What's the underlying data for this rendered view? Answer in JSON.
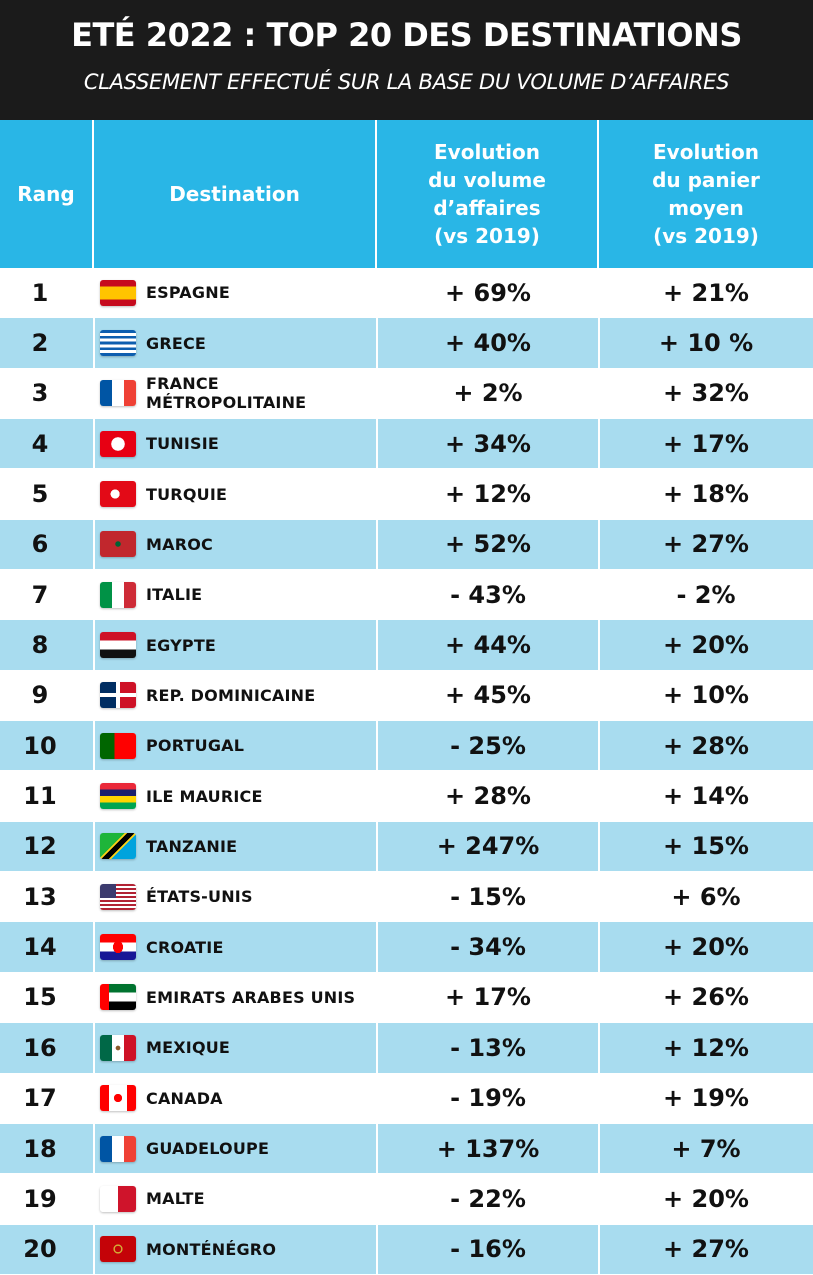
{
  "header": {
    "title": "ETÉ 2022 : TOP 20 DES DESTINATIONS",
    "subtitle": "CLASSEMENT EFFECTUÉ SUR LA BASE DU VOLUME D’AFFAIRES"
  },
  "columns": {
    "rank": "Rang",
    "destination": "Destination",
    "volume": [
      "Evolution",
      "du volume",
      "d’affaires",
      "(vs 2019)"
    ],
    "basket": [
      "Evolution",
      "du panier",
      "moyen",
      "(vs 2019)"
    ]
  },
  "rows": [
    {
      "rank": "1",
      "destination": "ESPAGNE",
      "volume": "+ 69%",
      "basket": "+ 21%",
      "flag": "spain-flag-icon"
    },
    {
      "rank": "2",
      "destination": "GRECE",
      "volume": "+ 40%",
      "basket": "+ 10 %",
      "flag": "greece-flag-icon"
    },
    {
      "rank": "3",
      "destination": "FRANCE MÉTROPOLITAINE",
      "volume": "+ 2%",
      "basket": "+ 32%",
      "flag": "france-flag-icon"
    },
    {
      "rank": "4",
      "destination": "TUNISIE",
      "volume": "+ 34%",
      "basket": "+ 17%",
      "flag": "tunisia-flag-icon"
    },
    {
      "rank": "5",
      "destination": "TURQUIE",
      "volume": "+ 12%",
      "basket": "+ 18%",
      "flag": "turkey-flag-icon"
    },
    {
      "rank": "6",
      "destination": "MAROC",
      "volume": "+ 52%",
      "basket": "+ 27%",
      "flag": "morocco-flag-icon"
    },
    {
      "rank": "7",
      "destination": "ITALIE",
      "volume": "- 43%",
      "basket": "- 2%",
      "flag": "italy-flag-icon"
    },
    {
      "rank": "8",
      "destination": "EGYPTE",
      "volume": "+ 44%",
      "basket": "+ 20%",
      "flag": "egypt-flag-icon"
    },
    {
      "rank": "9",
      "destination": "REP. DOMINICAINE",
      "volume": "+ 45%",
      "basket": "+ 10%",
      "flag": "dominican-republic-flag-icon"
    },
    {
      "rank": "10",
      "destination": "PORTUGAL",
      "volume": "- 25%",
      "basket": "+ 28%",
      "flag": "portugal-flag-icon"
    },
    {
      "rank": "11",
      "destination": "ILE MAURICE",
      "volume": "+ 28%",
      "basket": "+ 14%",
      "flag": "mauritius-flag-icon"
    },
    {
      "rank": "12",
      "destination": "TANZANIE",
      "volume": "+ 247%",
      "basket": "+ 15%",
      "flag": "tanzania-flag-icon"
    },
    {
      "rank": "13",
      "destination": "ÉTATS-UNIS",
      "volume": "- 15%",
      "basket": "+ 6%",
      "flag": "usa-flag-icon"
    },
    {
      "rank": "14",
      "destination": "CROATIE",
      "volume": "- 34%",
      "basket": "+ 20%",
      "flag": "croatia-flag-icon"
    },
    {
      "rank": "15",
      "destination": "EMIRATS ARABES UNIS",
      "volume": "+ 17%",
      "basket": "+ 26%",
      "flag": "uae-flag-icon"
    },
    {
      "rank": "16",
      "destination": "MEXIQUE",
      "volume": "- 13%",
      "basket": "+ 12%",
      "flag": "mexico-flag-icon"
    },
    {
      "rank": "17",
      "destination": "CANADA",
      "volume": "- 19%",
      "basket": "+ 19%",
      "flag": "canada-flag-icon"
    },
    {
      "rank": "18",
      "destination": "GUADELOUPE",
      "volume": "+ 137%",
      "basket": "+ 7%",
      "flag": "guadeloupe-flag-icon"
    },
    {
      "rank": "19",
      "destination": "MALTE",
      "volume": "- 22%",
      "basket": "+ 20%",
      "flag": "malta-flag-icon"
    },
    {
      "rank": "20",
      "destination": "MONTÉNÉGRO",
      "volume": "- 16%",
      "basket": "+ 27%",
      "flag": "montenegro-flag-icon"
    }
  ],
  "colors": {
    "header_bg": "#1b1b1b",
    "column_header_bg": "#29b6e6",
    "alt_row_bg": "#a8dcef"
  }
}
